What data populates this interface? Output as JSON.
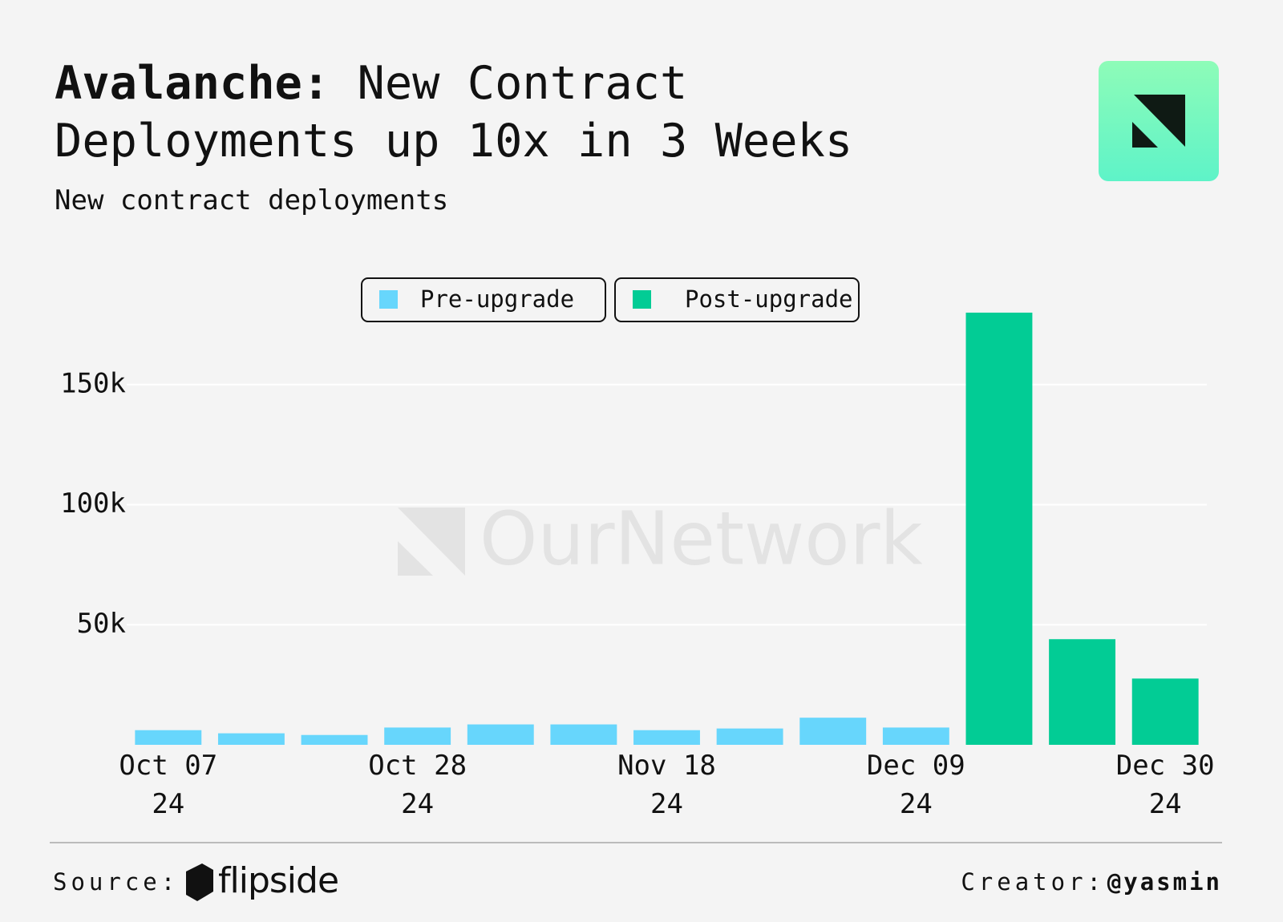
{
  "chart_data": {
    "type": "bar",
    "title_lead": "Avalanche:",
    "title": "New Contract Deployments up 10x in 3 Weeks",
    "subtitle": "New contract deployments",
    "watermark": "OurNetwork",
    "categories": [
      "Oct 07\n24",
      null,
      null,
      "Oct 28\n24",
      null,
      null,
      "Nov 18\n24",
      null,
      null,
      "Dec 09\n24",
      null,
      null,
      "Dec 30\n24"
    ],
    "series": [
      {
        "name": "Pre-upgrade",
        "color": "#67d6fc",
        "values": [
          6100,
          4800,
          4100,
          7200,
          8500,
          8500,
          6100,
          6800,
          11300,
          7200,
          null,
          null,
          null
        ]
      },
      {
        "name": "Post-upgrade",
        "color": "#02cc95",
        "values": [
          null,
          null,
          null,
          null,
          null,
          null,
          null,
          null,
          null,
          null,
          180000,
          44000,
          27600
        ]
      }
    ],
    "ylim": [
      0,
      190000
    ],
    "yticks": [
      {
        "value": 50000,
        "label": "50k"
      },
      {
        "value": 100000,
        "label": "100k"
      },
      {
        "value": 150000,
        "label": "150k"
      }
    ],
    "grid": true,
    "source_label": "Source:",
    "source": "flipside",
    "creator_label": "Creator:",
    "creator": "@yasmin"
  }
}
